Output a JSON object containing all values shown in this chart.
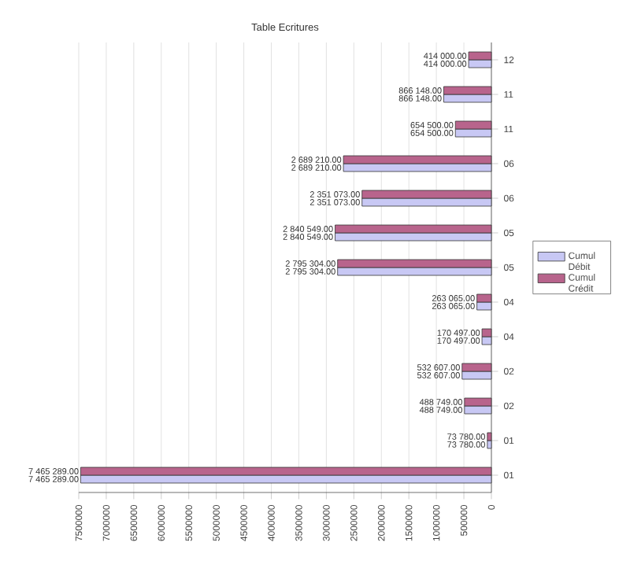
{
  "chart_data": {
    "type": "bar",
    "orientation": "horizontal",
    "title": "Table Ecritures",
    "categories": [
      "12",
      "11",
      "11",
      "06",
      "06",
      "05",
      "05",
      "04",
      "04",
      "02",
      "02",
      "01",
      "01"
    ],
    "series": [
      {
        "name": "Cumul Débit",
        "color": "#c8c8f4",
        "values": [
          414000,
          866148,
          654500,
          2689210,
          2351073,
          2840549,
          2795304,
          263065,
          170497,
          532607,
          488749,
          73780,
          7465289
        ],
        "value_labels": [
          "414 000.00",
          "866 148.00",
          "654 500.00",
          "2 689 210.00",
          "2 351 073.00",
          "2 840 549.00",
          "2 795 304.00",
          "263 065.00",
          "170 497.00",
          "532 607.00",
          "488 749.00",
          "73 780.00",
          "7 465 289.00"
        ]
      },
      {
        "name": "Cumul Crédit",
        "color": "#b8648c",
        "values": [
          414000,
          866148,
          654500,
          2689210,
          2351073,
          2840549,
          2795304,
          263065,
          170497,
          532607,
          488749,
          73780,
          7465289
        ],
        "value_labels": [
          "414 000.00",
          "866 148.00",
          "654 500.00",
          "2 689 210.00",
          "2 351 073.00",
          "2 840 549.00",
          "2 795 304.00",
          "263 065.00",
          "170 497.00",
          "532 607.00",
          "488 749.00",
          "73 780.00",
          "7 465 289.00"
        ]
      }
    ],
    "xlim": [
      7500000,
      0
    ],
    "xticks": [
      7500000,
      7000000,
      6500000,
      6000000,
      5500000,
      5000000,
      4500000,
      4000000,
      3500000,
      3000000,
      2500000,
      2000000,
      1500000,
      1000000,
      500000,
      0
    ],
    "grid": "x",
    "legend": "right"
  }
}
